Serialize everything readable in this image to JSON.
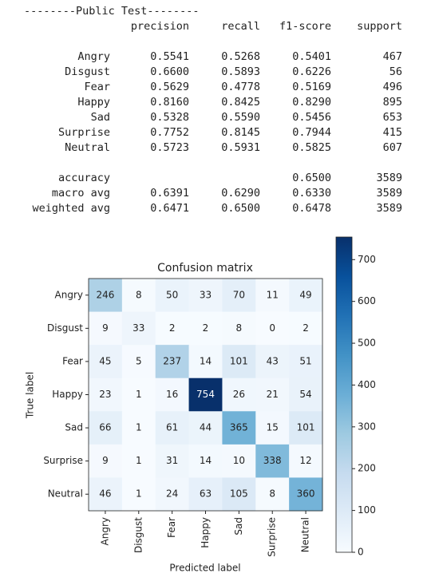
{
  "report": {
    "title": "--------Public Test--------",
    "headers": [
      "precision",
      "recall",
      "f1-score",
      "support"
    ],
    "rows": [
      [
        "Angry",
        "0.5541",
        "0.5268",
        "0.5401",
        "467"
      ],
      [
        "Disgust",
        "0.6600",
        "0.5893",
        "0.6226",
        "56"
      ],
      [
        "Fear",
        "0.5629",
        "0.4778",
        "0.5169",
        "496"
      ],
      [
        "Happy",
        "0.8160",
        "0.8425",
        "0.8290",
        "895"
      ],
      [
        "Sad",
        "0.5328",
        "0.5590",
        "0.5456",
        "653"
      ],
      [
        "Surprise",
        "0.7752",
        "0.8145",
        "0.7944",
        "415"
      ],
      [
        "Neutral",
        "0.5723",
        "0.5931",
        "0.5825",
        "607"
      ]
    ],
    "summary": [
      [
        "accuracy",
        null,
        null,
        "0.6500",
        "3589"
      ],
      [
        "macro avg",
        "0.6391",
        "0.6290",
        "0.6330",
        "3589"
      ],
      [
        "weighted avg",
        "0.6471",
        "0.6500",
        "0.6478",
        "3589"
      ]
    ]
  },
  "chart_data": {
    "type": "heatmap",
    "title": "Confusion matrix",
    "x_label": "Predicted label",
    "y_label": "True label",
    "x_categories": [
      "Angry",
      "Disgust",
      "Fear",
      "Happy",
      "Sad",
      "Surprise",
      "Neutral"
    ],
    "y_categories": [
      "Angry",
      "Disgust",
      "Fear",
      "Happy",
      "Sad",
      "Surprise",
      "Neutral"
    ],
    "values": [
      [
        246,
        8,
        50,
        33,
        70,
        11,
        49
      ],
      [
        9,
        33,
        2,
        2,
        8,
        0,
        2
      ],
      [
        45,
        5,
        237,
        14,
        101,
        43,
        51
      ],
      [
        23,
        1,
        16,
        754,
        26,
        21,
        54
      ],
      [
        66,
        1,
        61,
        44,
        365,
        15,
        101
      ],
      [
        9,
        1,
        31,
        14,
        10,
        338,
        12
      ],
      [
        46,
        1,
        24,
        63,
        105,
        8,
        360
      ]
    ],
    "colorscale": [
      "#f7fbff",
      "#deebf7",
      "#c6dbef",
      "#9ecae1",
      "#6baed6",
      "#4292c6",
      "#2171b5",
      "#08519c",
      "#08306b"
    ],
    "clim": [
      0,
      754
    ],
    "cticks": [
      0,
      100,
      200,
      300,
      400,
      500,
      600,
      700
    ]
  }
}
